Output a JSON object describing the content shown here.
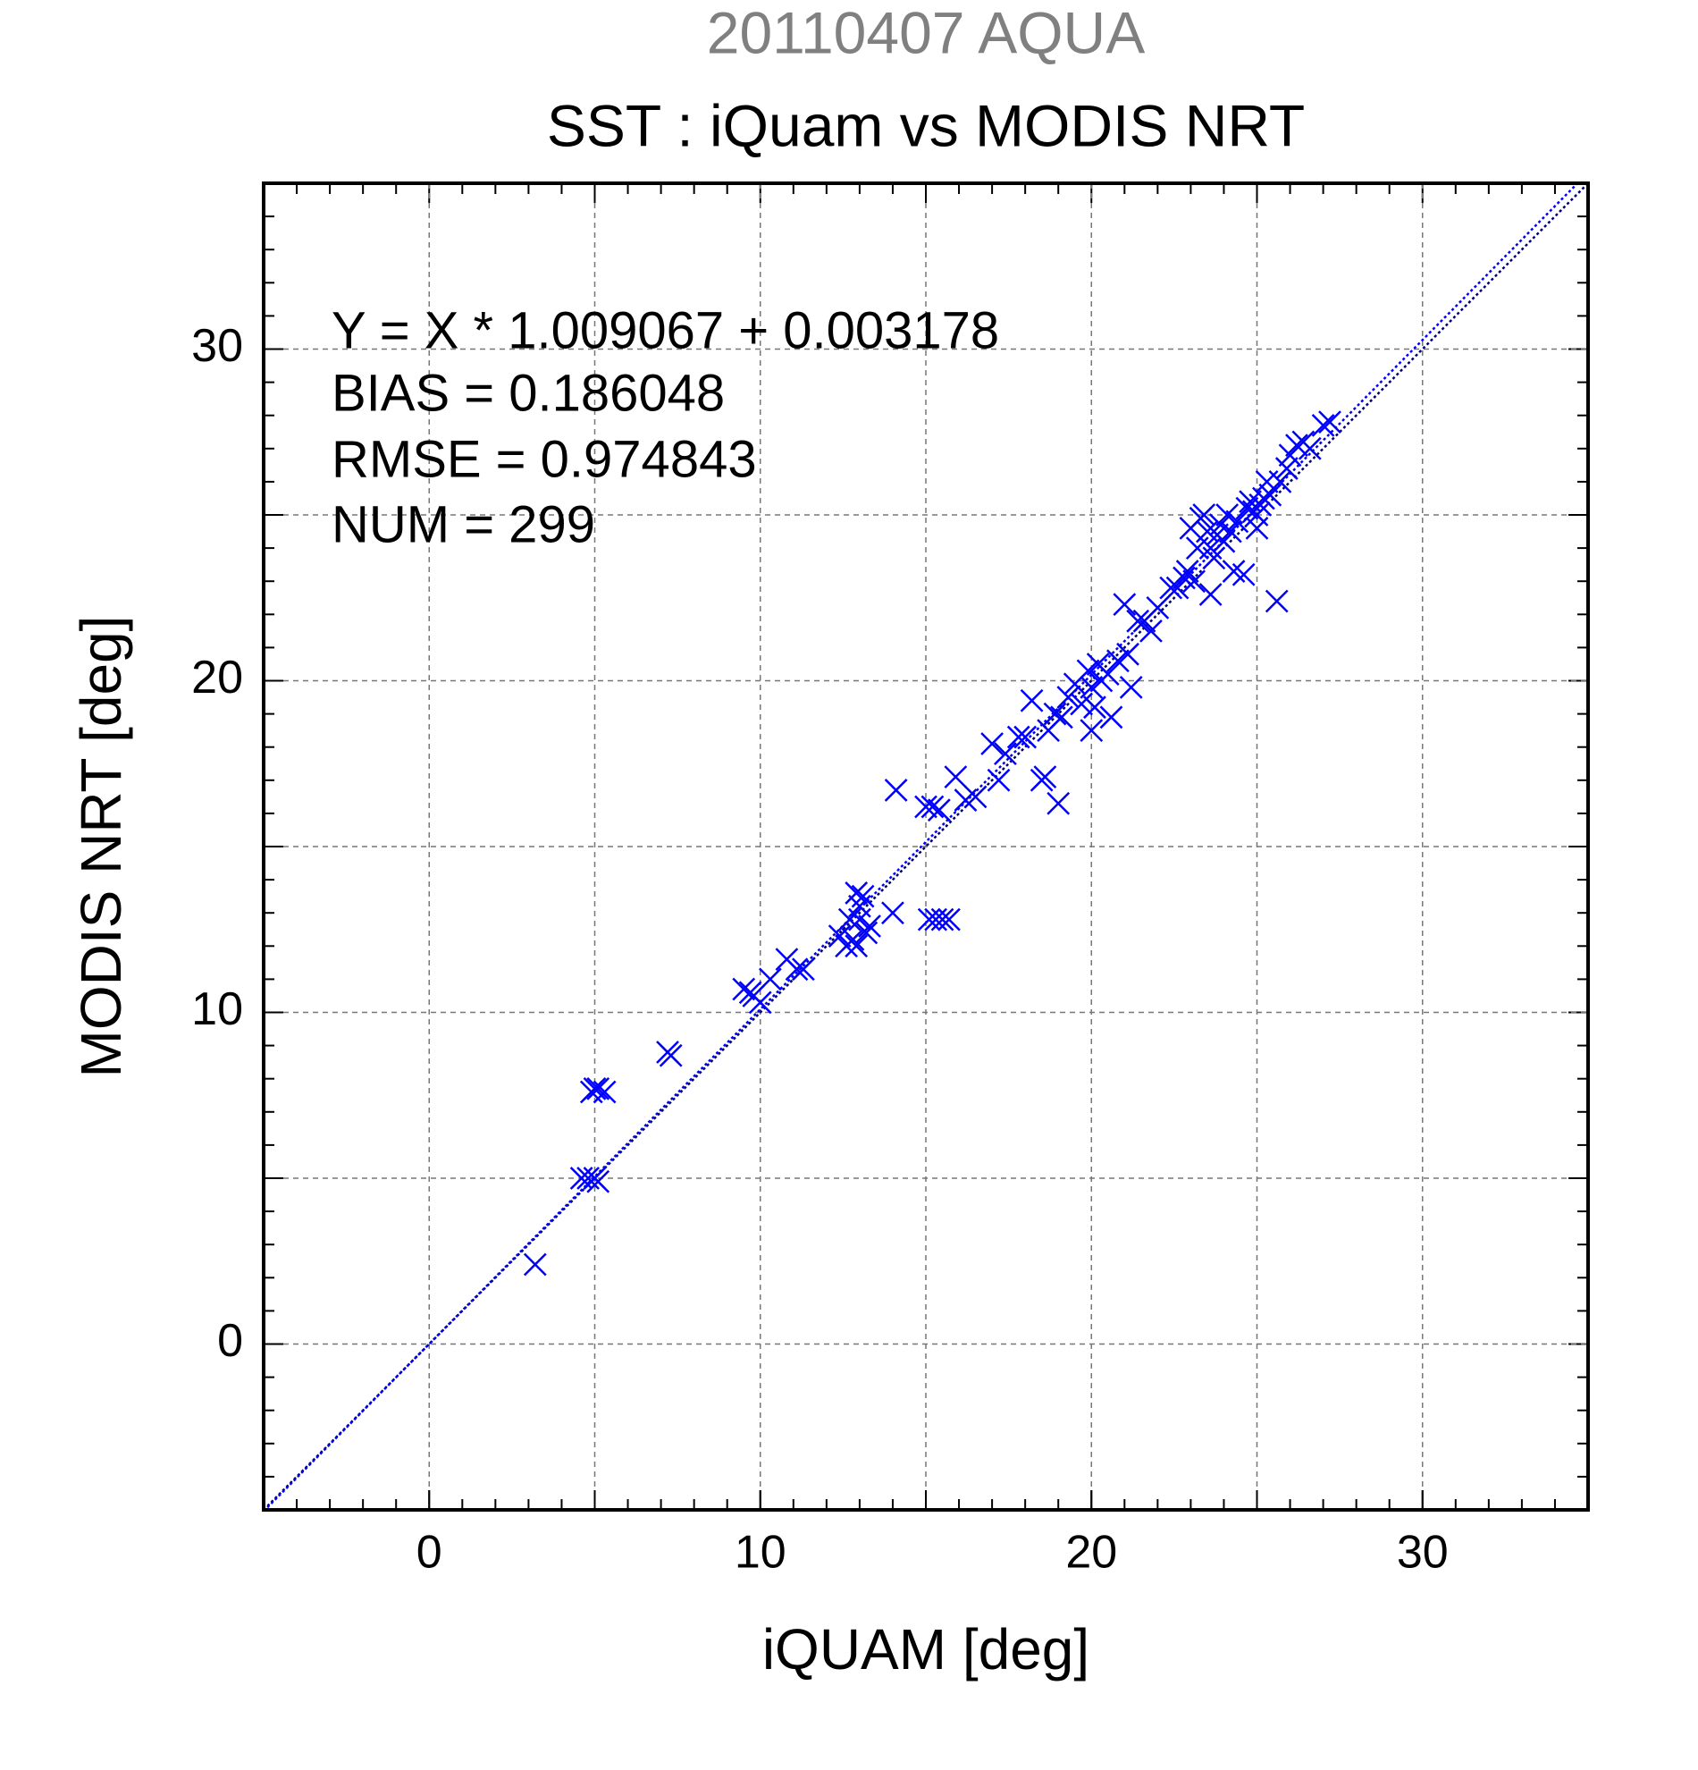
{
  "chart_data": {
    "type": "scatter",
    "title": "20110407 AQUA",
    "subtitle": "SST : iQuam vs MODIS NRT",
    "x_label": "iQUAM [deg]",
    "y_label": "MODIS NRT [deg]",
    "xlim": [
      -5,
      35
    ],
    "ylim": [
      -5,
      35
    ],
    "xticks": [
      0,
      10,
      20,
      30
    ],
    "yticks": [
      0,
      10,
      20,
      30
    ],
    "grid": true,
    "title_color": "#808080",
    "annotations": [
      "Y = X * 1.009067 + 0.003178",
      "BIAS = 0.186048",
      "RMSE = 0.974843",
      "NUM = 299"
    ],
    "reference_lines": [
      {
        "slope": 1,
        "intercept": 0,
        "color": "#00006e"
      },
      {
        "slope": 1.009067,
        "intercept": 0.003178,
        "color": "#0000ff"
      }
    ],
    "series": [
      {
        "color": "#0000ff",
        "x": [
          3.2,
          4.6,
          4.8,
          5.0,
          5.1,
          4.9,
          5.1,
          5.3,
          5.0,
          7.2,
          7.3,
          9.5,
          9.8,
          10.0,
          9.7,
          10.3,
          10.8,
          11.1,
          11.3,
          12.4,
          12.6,
          12.8,
          12.7,
          13.0,
          12.9,
          13.1,
          13.2,
          12.9,
          13.3,
          13.0,
          14.0,
          15.1,
          15.3,
          15.5,
          15.7,
          14.1,
          15.0,
          15.2,
          15.4,
          15.9,
          16.2,
          16.5,
          17.0,
          17.2,
          17.4,
          17.8,
          18.0,
          18.2,
          18.5,
          18.6,
          18.7,
          18.9,
          19.0,
          19.1,
          19.3,
          19.5,
          19.7,
          19.9,
          20.0,
          20.0,
          20.2,
          20.3,
          20.5,
          20.1,
          20.6,
          20.8,
          21.1,
          21.2,
          21.0,
          21.4,
          21.6,
          21.8,
          22.0,
          22.4,
          22.6,
          22.8,
          22.9,
          23.1,
          23.0,
          23.3,
          23.4,
          23.5,
          23.6,
          23.7,
          23.8,
          23.9,
          24.0,
          24.1,
          24.2,
          24.3,
          24.4,
          24.6,
          24.7,
          24.9,
          25.0,
          25.1,
          25.2,
          25.3,
          25.4,
          25.6,
          25.7,
          25.9,
          26.0,
          26.2,
          26.4,
          26.6,
          27.0,
          27.2,
          23.6,
          24.8,
          23.2,
          25.0
        ],
        "y": [
          2.4,
          5.0,
          5.0,
          5.0,
          4.9,
          7.6,
          7.7,
          7.6,
          7.7,
          8.8,
          8.7,
          10.7,
          10.5,
          10.3,
          10.6,
          11.0,
          11.6,
          11.3,
          11.3,
          12.3,
          12.0,
          12.2,
          12.8,
          13.2,
          13.6,
          13.5,
          12.4,
          12.0,
          12.6,
          12.8,
          13.0,
          12.8,
          12.8,
          12.8,
          12.8,
          16.7,
          16.2,
          16.2,
          16.1,
          17.1,
          16.4,
          16.5,
          18.1,
          17.0,
          17.8,
          18.3,
          18.3,
          19.4,
          17.0,
          17.1,
          18.5,
          19.0,
          16.3,
          18.9,
          19.5,
          19.9,
          19.3,
          20.3,
          19.8,
          18.5,
          20.5,
          20.0,
          20.2,
          19.2,
          18.9,
          20.6,
          20.8,
          19.8,
          22.3,
          21.8,
          21.8,
          21.5,
          22.2,
          22.8,
          22.8,
          23.1,
          23.3,
          23.0,
          24.6,
          24.9,
          25.0,
          24.5,
          24.0,
          23.7,
          24.4,
          24.7,
          24.2,
          25.0,
          24.5,
          23.3,
          24.8,
          23.2,
          25.2,
          25.1,
          24.6,
          25.3,
          25.5,
          26.0,
          25.6,
          22.4,
          26.0,
          26.4,
          26.8,
          27.1,
          27.2,
          27.0,
          27.7,
          27.8,
          22.6,
          25.4,
          24.0,
          25.0
        ]
      }
    ]
  }
}
